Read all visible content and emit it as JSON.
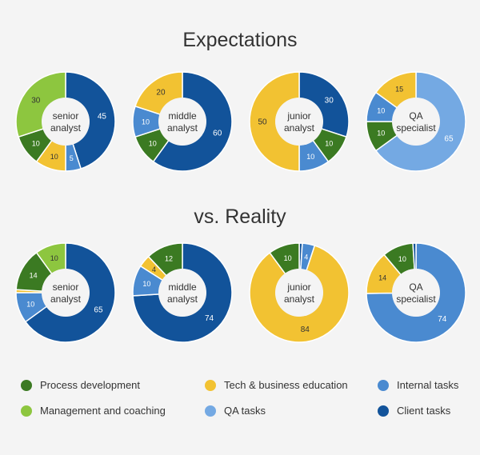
{
  "titles": {
    "top": "Expectations",
    "bottom": "vs. Reality"
  },
  "colors": {
    "process": "#3b7a22",
    "management": "#8dc63f",
    "education": "#f2c232",
    "internal": "#4a8ad0",
    "qa": "#74a9e3",
    "client": "#12539a"
  },
  "legend": [
    {
      "key": "process",
      "label": "Process development"
    },
    {
      "key": "education",
      "label": "Tech & business education"
    },
    {
      "key": "internal",
      "label": "Internal tasks"
    },
    {
      "key": "management",
      "label": "Management and coaching"
    },
    {
      "key": "qa",
      "label": "QA tasks"
    },
    {
      "key": "client",
      "label": "Client tasks"
    }
  ],
  "chart_data": [
    {
      "type": "pie",
      "group": "Expectations",
      "role": "senior analyst",
      "center_label": [
        "senior",
        "analyst"
      ],
      "slices": [
        {
          "category": "client",
          "value": 45,
          "label": "45"
        },
        {
          "category": "internal",
          "value": 5,
          "label": "5"
        },
        {
          "category": "education",
          "value": 10,
          "label": "10"
        },
        {
          "category": "process",
          "value": 10,
          "label": "10"
        },
        {
          "category": "management",
          "value": 30,
          "label": "30"
        }
      ]
    },
    {
      "type": "pie",
      "group": "Expectations",
      "role": "middle analyst",
      "center_label": [
        "middle",
        "analyst"
      ],
      "slices": [
        {
          "category": "client",
          "value": 60,
          "label": "60"
        },
        {
          "category": "process",
          "value": 10,
          "label": "10"
        },
        {
          "category": "internal",
          "value": 10,
          "label": "10"
        },
        {
          "category": "education",
          "value": 20,
          "label": "20"
        }
      ]
    },
    {
      "type": "pie",
      "group": "Expectations",
      "role": "junior analyst",
      "center_label": [
        "junior",
        "analyst"
      ],
      "slices": [
        {
          "category": "client",
          "value": 30,
          "label": "30"
        },
        {
          "category": "process",
          "value": 10,
          "label": "10"
        },
        {
          "category": "internal",
          "value": 10,
          "label": "10"
        },
        {
          "category": "education",
          "value": 50,
          "label": "50"
        }
      ]
    },
    {
      "type": "pie",
      "group": "Expectations",
      "role": "QA specialist",
      "center_label": [
        "QA",
        "specialist"
      ],
      "slices": [
        {
          "category": "qa",
          "value": 65,
          "label": "65"
        },
        {
          "category": "process",
          "value": 10,
          "label": "10"
        },
        {
          "category": "internal",
          "value": 10,
          "label": "10"
        },
        {
          "category": "education",
          "value": 15,
          "label": "15"
        }
      ]
    },
    {
      "type": "pie",
      "group": "vs. Reality",
      "role": "senior analyst",
      "center_label": [
        "senior",
        "analyst"
      ],
      "slices": [
        {
          "category": "client",
          "value": 65,
          "label": "65"
        },
        {
          "category": "internal",
          "value": 10,
          "label": "10"
        },
        {
          "category": "education",
          "value": 1,
          "label": ""
        },
        {
          "category": "process",
          "value": 14,
          "label": "14"
        },
        {
          "category": "management",
          "value": 10,
          "label": "10"
        }
      ]
    },
    {
      "type": "pie",
      "group": "vs. Reality",
      "role": "middle analyst",
      "center_label": [
        "middle",
        "analyst"
      ],
      "slices": [
        {
          "category": "client",
          "value": 74,
          "label": "74"
        },
        {
          "category": "internal",
          "value": 10,
          "label": "10"
        },
        {
          "category": "education",
          "value": 4,
          "label": "4"
        },
        {
          "category": "process",
          "value": 12,
          "label": "12"
        }
      ]
    },
    {
      "type": "pie",
      "group": "vs. Reality",
      "role": "junior analyst",
      "center_label": [
        "junior",
        "analyst"
      ],
      "slices": [
        {
          "category": "client",
          "value": 1,
          "label": ""
        },
        {
          "category": "internal",
          "value": 4,
          "label": "4"
        },
        {
          "category": "education",
          "value": 84,
          "label": "84"
        },
        {
          "category": "process",
          "value": 10,
          "label": "10"
        }
      ]
    },
    {
      "type": "pie",
      "group": "vs. Reality",
      "role": "QA specialist",
      "center_label": [
        "QA",
        "specialist"
      ],
      "slices": [
        {
          "category": "internal",
          "value": 74,
          "label": "74"
        },
        {
          "category": "education",
          "value": 14,
          "label": "14"
        },
        {
          "category": "process",
          "value": 10,
          "label": "10"
        },
        {
          "category": "client",
          "value": 1,
          "label": ""
        }
      ]
    }
  ]
}
